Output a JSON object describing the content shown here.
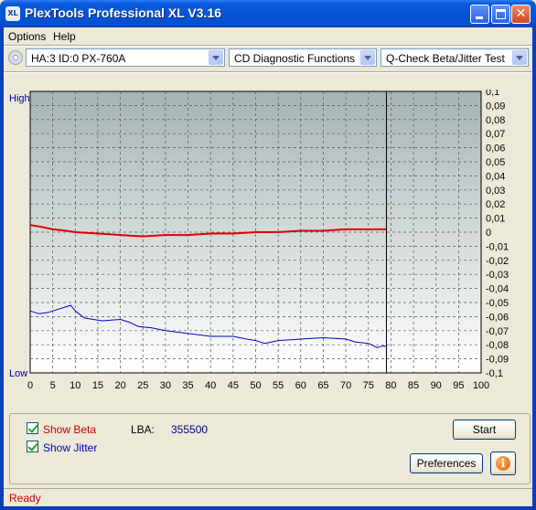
{
  "window": {
    "title": "PlexTools Professional XL V3.16",
    "icon_text": "XL",
    "icon": "app-xl-icon",
    "close_glyph": "✕"
  },
  "menu": {
    "items": [
      "Options",
      "Help"
    ]
  },
  "toolbar": {
    "drive": "HA:3 ID:0  PX-760A",
    "function": "CD Diagnostic Functions",
    "test": "Q-Check Beta/Jitter Test"
  },
  "chart_data": {
    "type": "line",
    "left_axis_top_label": "High",
    "left_axis_bottom_label": "Low",
    "x_ticks": [
      0,
      5,
      10,
      15,
      20,
      25,
      30,
      35,
      40,
      45,
      50,
      55,
      60,
      65,
      70,
      75,
      80,
      85,
      90,
      95,
      100
    ],
    "xlim": [
      0,
      100
    ],
    "y_right_ticks": [
      "0,1",
      "0,09",
      "0,08",
      "0,07",
      "0,06",
      "0,05",
      "0,04",
      "0,03",
      "0,02",
      "0,01",
      "0",
      "-0,01",
      "-0,02",
      "-0,03",
      "-0,04",
      "-0,05",
      "-0,06",
      "-0,07",
      "-0,08",
      "-0,09",
      "-0,1"
    ],
    "ylim": [
      -0.1,
      0.1
    ],
    "grid": true,
    "cursor_x": 79,
    "series": [
      {
        "key": "beta",
        "color": "#e00000",
        "points": [
          [
            0,
            0.005
          ],
          [
            2,
            0.004
          ],
          [
            5,
            0.002
          ],
          [
            8,
            0.001
          ],
          [
            10,
            0.0
          ],
          [
            15,
            -0.001
          ],
          [
            20,
            -0.002
          ],
          [
            25,
            -0.003
          ],
          [
            30,
            -0.002
          ],
          [
            35,
            -0.002
          ],
          [
            40,
            -0.001
          ],
          [
            45,
            -0.001
          ],
          [
            50,
            0.0
          ],
          [
            55,
            0.0
          ],
          [
            60,
            0.001
          ],
          [
            65,
            0.001
          ],
          [
            70,
            0.002
          ],
          [
            75,
            0.002
          ],
          [
            79,
            0.002
          ]
        ]
      },
      {
        "key": "jitter",
        "color": "#0000cc",
        "points": [
          [
            0,
            -0.056
          ],
          [
            2,
            -0.058
          ],
          [
            4,
            -0.057
          ],
          [
            6,
            -0.055
          ],
          [
            8,
            -0.053
          ],
          [
            9,
            -0.052
          ],
          [
            10,
            -0.056
          ],
          [
            12,
            -0.061
          ],
          [
            14,
            -0.062
          ],
          [
            16,
            -0.063
          ],
          [
            20,
            -0.062
          ],
          [
            22,
            -0.064
          ],
          [
            24,
            -0.067
          ],
          [
            27,
            -0.068
          ],
          [
            30,
            -0.07
          ],
          [
            35,
            -0.072
          ],
          [
            40,
            -0.074
          ],
          [
            45,
            -0.074
          ],
          [
            48,
            -0.076
          ],
          [
            50,
            -0.077
          ],
          [
            52,
            -0.079
          ],
          [
            55,
            -0.077
          ],
          [
            60,
            -0.076
          ],
          [
            65,
            -0.075
          ],
          [
            70,
            -0.076
          ],
          [
            72,
            -0.078
          ],
          [
            75,
            -0.079
          ],
          [
            77,
            -0.082
          ],
          [
            78,
            -0.081
          ],
          [
            79,
            -0.081
          ]
        ]
      }
    ]
  },
  "controls": {
    "show_beta_label": "Show Beta",
    "show_jitter_label": "Show Jitter",
    "show_beta_checked": true,
    "show_jitter_checked": true,
    "lba_label": "LBA:",
    "lba_value": "355500",
    "start_label": "Start",
    "preferences_label": "Preferences",
    "info_glyph": "i"
  },
  "status": {
    "text": "Ready"
  }
}
